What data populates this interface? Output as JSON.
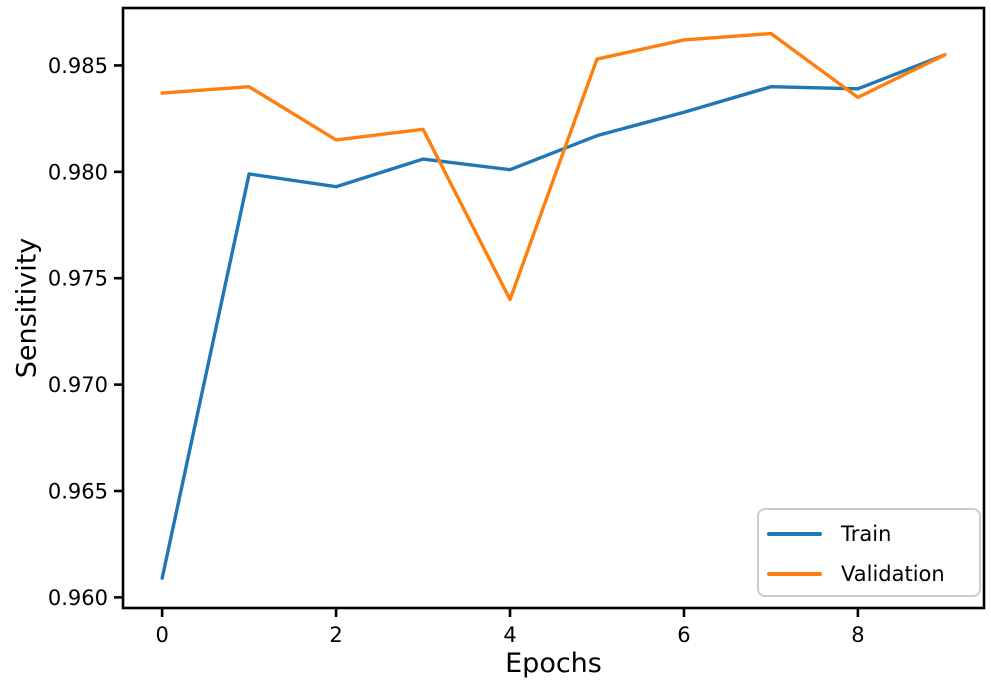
{
  "figure": {
    "background": "#ffffff",
    "text_color": "#000000",
    "spine_color": "#000000"
  },
  "chart_data": {
    "type": "line",
    "title": "",
    "xlabel": "Epochs",
    "ylabel": "Sensitivity",
    "x": [
      0,
      1,
      2,
      3,
      4,
      5,
      6,
      7,
      8,
      9
    ],
    "series": [
      {
        "name": "Train",
        "color": "#1f77b4",
        "values": [
          0.9609,
          0.9799,
          0.9793,
          0.9806,
          0.9801,
          0.9817,
          0.9828,
          0.984,
          0.9839,
          0.9855
        ]
      },
      {
        "name": "Validation",
        "color": "#ff7f0e",
        "values": [
          0.9837,
          0.984,
          0.9815,
          0.982,
          0.974,
          0.9853,
          0.9862,
          0.9865,
          0.9835,
          0.9855
        ]
      }
    ],
    "xlim": [
      -0.45,
      9.45
    ],
    "ylim": [
      0.9595,
      0.9877
    ],
    "xticks": {
      "values": [
        0,
        2,
        4,
        6,
        8
      ],
      "labels": [
        "0",
        "2",
        "4",
        "6",
        "8"
      ]
    },
    "yticks": {
      "values": [
        0.96,
        0.965,
        0.97,
        0.975,
        0.98,
        0.985
      ],
      "labels": [
        "0.960",
        "0.965",
        "0.970",
        "0.975",
        "0.980",
        "0.985"
      ]
    },
    "grid": false,
    "legend": {
      "position": "lower right",
      "entries": [
        "Train",
        "Validation"
      ]
    }
  }
}
